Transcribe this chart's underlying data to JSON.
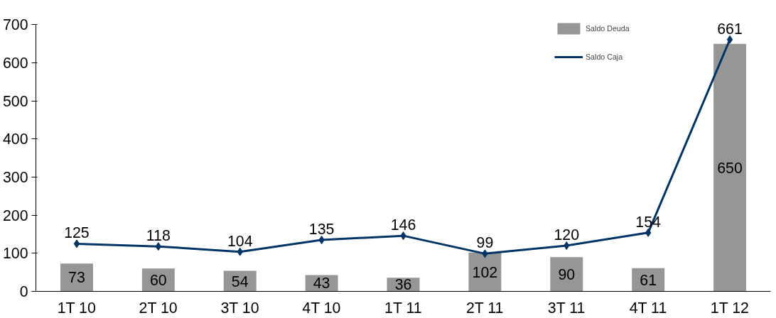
{
  "chart_data": {
    "type": "bar",
    "categories": [
      "1T 10",
      "2T 10",
      "3T 10",
      "4T 10",
      "1T 11",
      "2T 11",
      "3T 11",
      "4T 11",
      "1T 12"
    ],
    "series": [
      {
        "name": "Saldo Deuda",
        "color": "#969696",
        "values": [
          73,
          60,
          54,
          43,
          36,
          102,
          90,
          61,
          650
        ]
      },
      {
        "name": "Saldo Caja",
        "type": "line",
        "color": "#003366",
        "marker": "diamond",
        "values": [
          125,
          118,
          104,
          135,
          146,
          99,
          120,
          154,
          661
        ]
      }
    ],
    "ylim": [
      0,
      700
    ],
    "yticks": [
      0,
      100,
      200,
      300,
      400,
      500,
      600,
      700
    ],
    "grid": false,
    "legend": "top right",
    "data_labels": true
  }
}
